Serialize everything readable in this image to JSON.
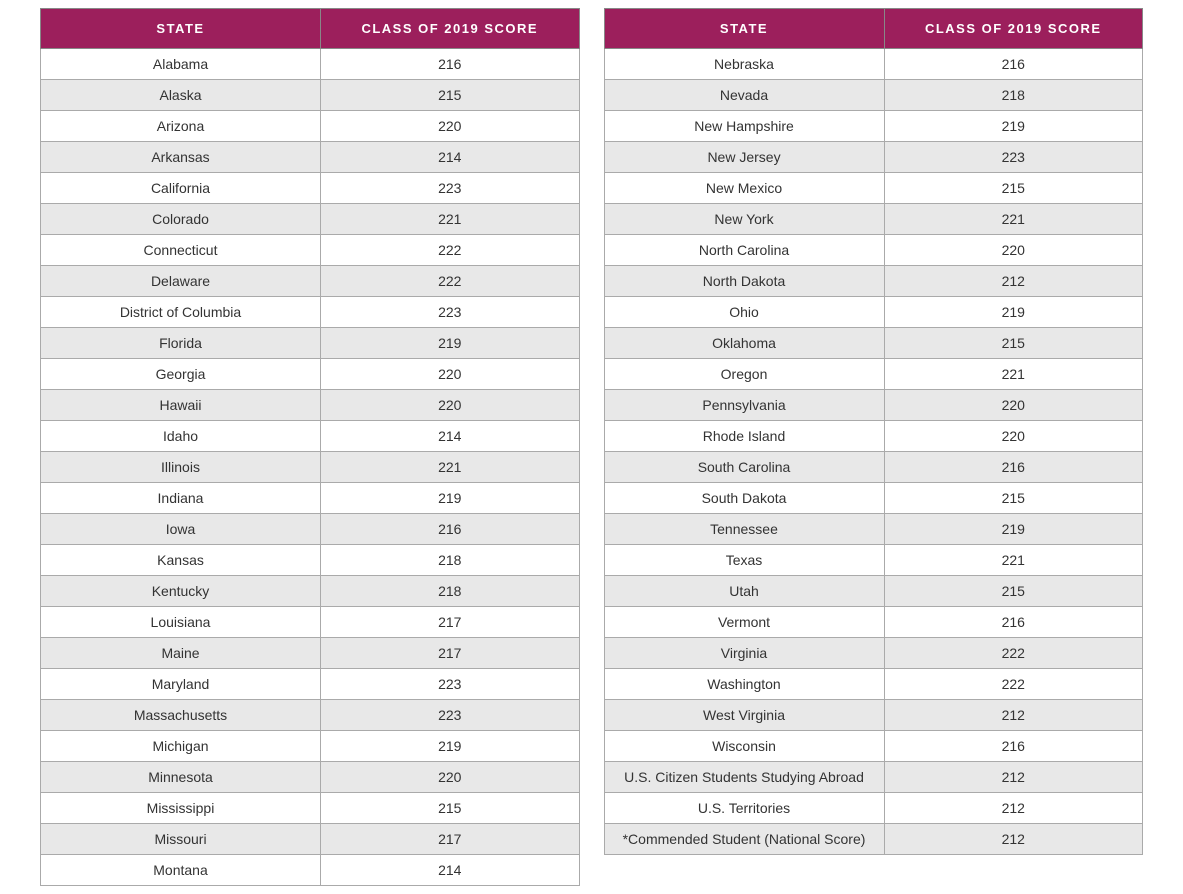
{
  "table": {
    "type": "table",
    "columns": [
      "STATE",
      "CLASS OF 2019 SCORE"
    ],
    "header_background": "#9c1f5c",
    "header_text_color": "#ffffff",
    "header_fontsize": 13,
    "header_letter_spacing": "1.5px",
    "row_odd_background": "#ffffff",
    "row_even_background": "#e8e8e8",
    "border_color": "#aaaaaa",
    "cell_fontsize": 14,
    "cell_text_color": "#333333",
    "column_widths": [
      "52%",
      "48%"
    ],
    "left_rows": [
      [
        "Alabama",
        "216"
      ],
      [
        "Alaska",
        "215"
      ],
      [
        "Arizona",
        "220"
      ],
      [
        "Arkansas",
        "214"
      ],
      [
        "California",
        "223"
      ],
      [
        "Colorado",
        "221"
      ],
      [
        "Connecticut",
        "222"
      ],
      [
        "Delaware",
        "222"
      ],
      [
        "District of Columbia",
        "223"
      ],
      [
        "Florida",
        "219"
      ],
      [
        "Georgia",
        "220"
      ],
      [
        "Hawaii",
        "220"
      ],
      [
        "Idaho",
        "214"
      ],
      [
        "Illinois",
        "221"
      ],
      [
        "Indiana",
        "219"
      ],
      [
        "Iowa",
        "216"
      ],
      [
        "Kansas",
        "218"
      ],
      [
        "Kentucky",
        "218"
      ],
      [
        "Louisiana",
        "217"
      ],
      [
        "Maine",
        "217"
      ],
      [
        "Maryland",
        "223"
      ],
      [
        "Massachusetts",
        "223"
      ],
      [
        "Michigan",
        "219"
      ],
      [
        "Minnesota",
        "220"
      ],
      [
        "Mississippi",
        "215"
      ],
      [
        "Missouri",
        "217"
      ],
      [
        "Montana",
        "214"
      ]
    ],
    "right_rows": [
      [
        "Nebraska",
        "216"
      ],
      [
        "Nevada",
        "218"
      ],
      [
        "New Hampshire",
        "219"
      ],
      [
        "New Jersey",
        "223"
      ],
      [
        "New Mexico",
        "215"
      ],
      [
        "New York",
        "221"
      ],
      [
        "North Carolina",
        "220"
      ],
      [
        "North Dakota",
        "212"
      ],
      [
        "Ohio",
        "219"
      ],
      [
        "Oklahoma",
        "215"
      ],
      [
        "Oregon",
        "221"
      ],
      [
        "Pennsylvania",
        "220"
      ],
      [
        "Rhode Island",
        "220"
      ],
      [
        "South Carolina",
        "216"
      ],
      [
        "South Dakota",
        "215"
      ],
      [
        "Tennessee",
        "219"
      ],
      [
        "Texas",
        "221"
      ],
      [
        "Utah",
        "215"
      ],
      [
        "Vermont",
        "216"
      ],
      [
        "Virginia",
        "222"
      ],
      [
        "Washington",
        "222"
      ],
      [
        "West Virginia",
        "212"
      ],
      [
        "Wisconsin",
        "216"
      ],
      [
        "U.S. Citizen Students Studying Abroad",
        "212"
      ],
      [
        "U.S. Territories",
        "212"
      ],
      [
        "*Commended Student (National Score)",
        "212"
      ]
    ]
  }
}
